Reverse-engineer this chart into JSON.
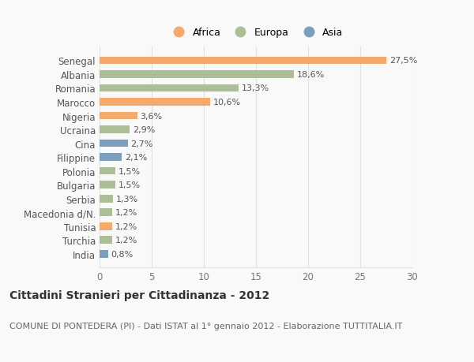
{
  "countries": [
    "Senegal",
    "Albania",
    "Romania",
    "Marocco",
    "Nigeria",
    "Ucraina",
    "Cina",
    "Filippine",
    "Polonia",
    "Bulgaria",
    "Serbia",
    "Macedonia d/N.",
    "Tunisia",
    "Turchia",
    "India"
  ],
  "values": [
    27.5,
    18.6,
    13.3,
    10.6,
    3.6,
    2.9,
    2.7,
    2.1,
    1.5,
    1.5,
    1.3,
    1.2,
    1.2,
    1.2,
    0.8
  ],
  "labels": [
    "27,5%",
    "18,6%",
    "13,3%",
    "10,6%",
    "3,6%",
    "2,9%",
    "2,7%",
    "2,1%",
    "1,5%",
    "1,5%",
    "1,3%",
    "1,2%",
    "1,2%",
    "1,2%",
    "0,8%"
  ],
  "continents": [
    "Africa",
    "Europa",
    "Europa",
    "Africa",
    "Africa",
    "Europa",
    "Asia",
    "Asia",
    "Europa",
    "Europa",
    "Europa",
    "Europa",
    "Africa",
    "Europa",
    "Asia"
  ],
  "colors": {
    "Africa": "#F5A96B",
    "Europa": "#ABBE96",
    "Asia": "#7B9FBF"
  },
  "xlim": [
    0,
    30
  ],
  "xticks": [
    0,
    5,
    10,
    15,
    20,
    25,
    30
  ],
  "title": "Cittadini Stranieri per Cittadinanza - 2012",
  "subtitle": "COMUNE DI PONTEDERA (PI) - Dati ISTAT al 1° gennaio 2012 - Elaborazione TUTTITALIA.IT",
  "background_color": "#f9f9f9",
  "grid_color": "#e0e0e0",
  "bar_height": 0.55,
  "title_fontsize": 10,
  "subtitle_fontsize": 8,
  "tick_fontsize": 8.5,
  "label_fontsize": 8
}
